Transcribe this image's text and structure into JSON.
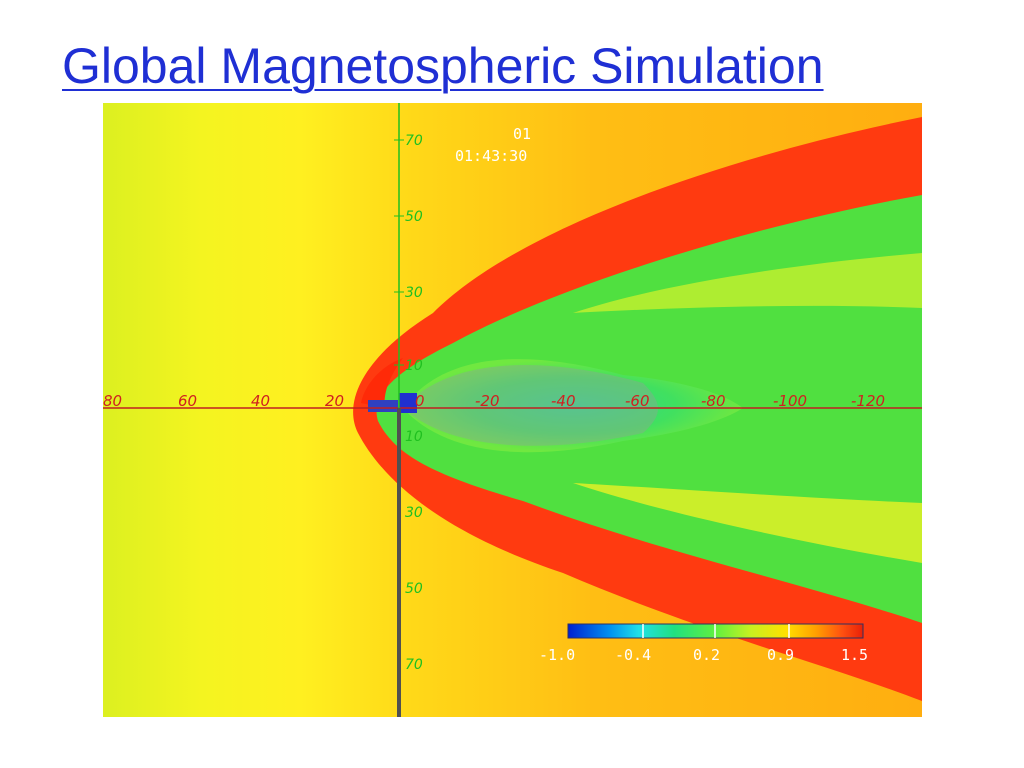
{
  "slide": {
    "title": "Global Magnetospheric Simulation"
  },
  "simulation": {
    "frame_number": "01",
    "timestamp": "01:43:30",
    "x_axis_ticks": [
      "80",
      "60",
      "40",
      "20",
      "0",
      "-20",
      "-40",
      "-60",
      "-80",
      "-100",
      "-120"
    ],
    "y_axis_ticks_upper": [
      "70",
      "50",
      "30",
      "10"
    ],
    "y_axis_ticks_lower": [
      "10",
      "30",
      "50",
      "70"
    ],
    "colorbar": {
      "tick_labels": [
        "-1.0",
        "-0.4",
        "0.2",
        "0.9",
        "1.5"
      ],
      "colors": [
        "#0020d0",
        "#0090f0",
        "#20e0e8",
        "#20e080",
        "#60f040",
        "#c8f020",
        "#ffe000",
        "#ffa000",
        "#ff5010",
        "#e82008"
      ]
    },
    "colors": {
      "solar_wind": "#f2f020",
      "magnetosheath": "#ffb010",
      "boundary": "#ff3010",
      "interior": "#40e050",
      "tail_core": "#90a890",
      "x_axis": "#c02020",
      "y_axis": "#20c020"
    }
  }
}
